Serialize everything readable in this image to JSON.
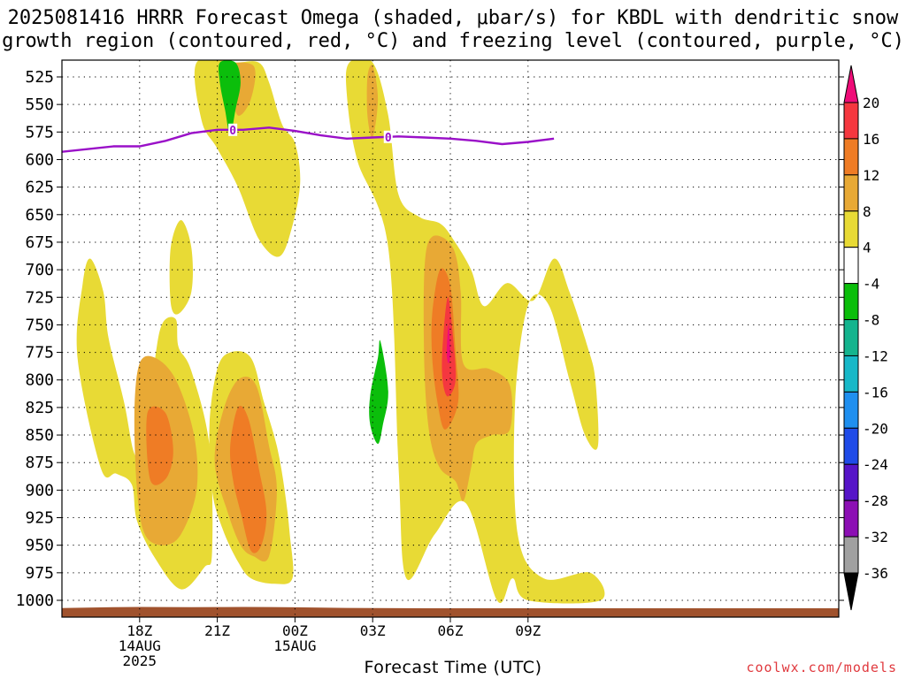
{
  "title": {
    "line1": "2025081416 HRRR Forecast Omega (shaded, μbar/s) for KBDL with dendritic snow",
    "line2": "growth region (contoured, red, °C) and freezing level (contoured, purple, °C)"
  },
  "credit": "coolwx.com/models",
  "chart_data": {
    "type": "heatmap",
    "xlabel": "Forecast Time (UTC)",
    "ylabel": "",
    "y_axis": {
      "scale": "pressure (hPa), inverted",
      "ylim": [
        1000,
        510
      ],
      "ticks": [
        525,
        550,
        575,
        600,
        625,
        650,
        675,
        700,
        725,
        750,
        775,
        800,
        825,
        850,
        875,
        900,
        925,
        950,
        975,
        1000
      ]
    },
    "x_axis": {
      "xlim_hours_from_start": [
        0,
        30
      ],
      "ticks": [
        {
          "hour": 3,
          "label": "18Z",
          "sub1": "14AUG",
          "sub2": "2025"
        },
        {
          "hour": 6,
          "label": "21Z",
          "sub1": "",
          "sub2": ""
        },
        {
          "hour": 9,
          "label": "00Z",
          "sub1": "15AUG",
          "sub2": ""
        },
        {
          "hour": 12,
          "label": "03Z",
          "sub1": "",
          "sub2": ""
        },
        {
          "hour": 15,
          "label": "06Z",
          "sub1": "",
          "sub2": ""
        },
        {
          "hour": 18,
          "label": "09Z",
          "sub1": "",
          "sub2": ""
        }
      ]
    },
    "grid": true,
    "colorbar": {
      "levels": [
        20,
        16,
        12,
        8,
        4,
        -4,
        -8,
        -12,
        -16,
        -20,
        -24,
        -28,
        -32,
        -36
      ],
      "colors": [
        "#ef0c78",
        "#f5373f",
        "#ef7c25",
        "#e8a935",
        "#e8da35",
        "#ffffff",
        "#0bbe0b",
        "#14b48e",
        "#17b8c8",
        "#1f8fef",
        "#1f4be8",
        "#5614c8",
        "#8c0fb4",
        "#a0a0a0",
        "#000000"
      ]
    },
    "freezing_level": {
      "label": "0",
      "color": "#9a10c8",
      "points": [
        [
          0,
          593
        ],
        [
          2,
          588
        ],
        [
          3,
          588
        ],
        [
          4,
          583
        ],
        [
          5,
          576
        ],
        [
          6,
          573
        ],
        [
          7,
          573
        ],
        [
          8,
          571
        ],
        [
          9,
          574
        ],
        [
          10,
          578
        ],
        [
          11,
          581
        ],
        [
          12,
          580
        ],
        [
          13,
          579
        ],
        [
          14,
          580
        ],
        [
          15,
          581
        ],
        [
          16,
          583
        ],
        [
          17,
          586
        ],
        [
          18,
          584
        ],
        [
          19,
          581
        ]
      ]
    },
    "omega_regions": [
      {
        "level": 4,
        "color": "#e8da35",
        "points": [
          [
            5.2,
            512
          ],
          [
            6.7,
            512
          ],
          [
            7.6,
            512
          ],
          [
            8.0,
            530
          ],
          [
            8.5,
            568
          ],
          [
            9.0,
            585
          ],
          [
            9.2,
            620
          ],
          [
            8.9,
            660
          ],
          [
            8.4,
            688
          ],
          [
            7.6,
            672
          ],
          [
            6.8,
            625
          ],
          [
            6.0,
            590
          ],
          [
            5.4,
            565
          ]
        ]
      },
      {
        "level": 4,
        "color": "#e8da35",
        "points": [
          [
            11.1,
            512
          ],
          [
            12.0,
            512
          ],
          [
            12.6,
            560
          ],
          [
            13.0,
            632
          ],
          [
            13.8,
            652
          ],
          [
            14.6,
            658
          ],
          [
            15.1,
            672
          ],
          [
            15.8,
            700
          ],
          [
            16.3,
            733
          ],
          [
            17.2,
            712
          ],
          [
            18.2,
            728
          ],
          [
            19.0,
            690
          ],
          [
            19.6,
            720
          ],
          [
            20.3,
            770
          ],
          [
            20.6,
            800
          ],
          [
            20.7,
            860
          ],
          [
            20.2,
            850
          ],
          [
            19.6,
            800
          ],
          [
            18.8,
            732
          ],
          [
            18.0,
            732
          ],
          [
            17.5,
            820
          ],
          [
            17.6,
            940
          ],
          [
            18.6,
            980
          ],
          [
            20.4,
            975
          ],
          [
            20.8,
            1000
          ],
          [
            18.0,
            1000
          ],
          [
            17.4,
            980
          ],
          [
            16.8,
            1000
          ],
          [
            15.6,
            912
          ],
          [
            14.4,
            940
          ],
          [
            13.3,
            980
          ],
          [
            13.0,
            880
          ],
          [
            12.6,
            680
          ],
          [
            11.4,
            600
          ],
          [
            11.0,
            540
          ]
        ]
      },
      {
        "level": 4,
        "color": "#e8da35",
        "points": [
          [
            0.6,
            780
          ],
          [
            0.8,
            713
          ],
          [
            1.1,
            690
          ],
          [
            1.6,
            720
          ],
          [
            1.8,
            762
          ],
          [
            2.4,
            820
          ],
          [
            2.8,
            867
          ],
          [
            3.2,
            866
          ],
          [
            3.6,
            780
          ],
          [
            3.9,
            748
          ],
          [
            4.4,
            745
          ],
          [
            4.5,
            770
          ],
          [
            5.0,
            792
          ],
          [
            5.7,
            860
          ],
          [
            5.8,
            956
          ],
          [
            5.5,
            970
          ],
          [
            4.6,
            990
          ],
          [
            3.6,
            962
          ],
          [
            2.9,
            928
          ],
          [
            2.7,
            895
          ],
          [
            2.1,
            885
          ],
          [
            1.5,
            880
          ]
        ]
      },
      {
        "level": 4,
        "color": "#e8da35",
        "points": [
          [
            4.2,
            680
          ],
          [
            4.6,
            655
          ],
          [
            5.0,
            680
          ],
          [
            5.0,
            720
          ],
          [
            4.5,
            740
          ],
          [
            4.2,
            730
          ]
        ]
      },
      {
        "level": 4,
        "color": "#e8da35",
        "points": [
          [
            5.7,
            840
          ],
          [
            6.0,
            790
          ],
          [
            6.5,
            775
          ],
          [
            7.3,
            780
          ],
          [
            7.8,
            820
          ],
          [
            8.3,
            860
          ],
          [
            8.6,
            900
          ],
          [
            8.8,
            940
          ],
          [
            8.9,
            980
          ],
          [
            8.2,
            985
          ],
          [
            7.3,
            980
          ],
          [
            6.8,
            965
          ],
          [
            6.2,
            935
          ],
          [
            5.8,
            900
          ]
        ]
      },
      {
        "level": 8,
        "color": "#e8a935",
        "points": [
          [
            6.3,
            515
          ],
          [
            7.4,
            515
          ],
          [
            7.3,
            545
          ],
          [
            6.8,
            560
          ],
          [
            6.5,
            535
          ]
        ]
      },
      {
        "level": 8,
        "color": "#e8a935",
        "points": [
          [
            11.8,
            525
          ],
          [
            12.0,
            515
          ],
          [
            12.2,
            545
          ],
          [
            12.0,
            580
          ],
          [
            11.8,
            560
          ]
        ]
      },
      {
        "level": 8,
        "color": "#e8a935",
        "points": [
          [
            2.8,
            830
          ],
          [
            3.0,
            785
          ],
          [
            3.6,
            780
          ],
          [
            4.4,
            800
          ],
          [
            5.1,
            850
          ],
          [
            5.2,
            900
          ],
          [
            4.6,
            940
          ],
          [
            3.9,
            950
          ],
          [
            3.2,
            940
          ],
          [
            2.9,
            900
          ]
        ]
      },
      {
        "level": 8,
        "color": "#e8a935",
        "points": [
          [
            5.9,
            875
          ],
          [
            6.2,
            830
          ],
          [
            6.8,
            800
          ],
          [
            7.5,
            805
          ],
          [
            8.0,
            860
          ],
          [
            8.3,
            900
          ],
          [
            8.0,
            960
          ],
          [
            7.4,
            960
          ],
          [
            6.9,
            950
          ],
          [
            6.4,
            920
          ]
        ]
      },
      {
        "level": 8,
        "color": "#e8a935",
        "points": [
          [
            14.0,
            700
          ],
          [
            14.3,
            670
          ],
          [
            15.1,
            680
          ],
          [
            15.4,
            720
          ],
          [
            15.5,
            785
          ],
          [
            16.5,
            790
          ],
          [
            17.3,
            805
          ],
          [
            17.3,
            845
          ],
          [
            16.6,
            850
          ],
          [
            16.0,
            858
          ],
          [
            15.8,
            880
          ],
          [
            15.5,
            910
          ],
          [
            15.2,
            892
          ],
          [
            14.6,
            880
          ],
          [
            14.2,
            850
          ],
          [
            14.0,
            790
          ]
        ]
      },
      {
        "level": 12,
        "color": "#ef7c25",
        "points": [
          [
            3.3,
            830
          ],
          [
            4.0,
            830
          ],
          [
            4.3,
            865
          ],
          [
            4.0,
            890
          ],
          [
            3.4,
            890
          ]
        ]
      },
      {
        "level": 12,
        "color": "#ef7c25",
        "points": [
          [
            6.5,
            860
          ],
          [
            6.8,
            825
          ],
          [
            7.2,
            835
          ],
          [
            7.6,
            880
          ],
          [
            7.9,
            920
          ],
          [
            7.7,
            950
          ],
          [
            7.3,
            955
          ],
          [
            6.9,
            920
          ],
          [
            6.6,
            890
          ]
        ]
      },
      {
        "level": 12,
        "color": "#ef7c25",
        "points": [
          [
            14.3,
            740
          ],
          [
            14.6,
            700
          ],
          [
            15.0,
            715
          ],
          [
            15.2,
            775
          ],
          [
            15.3,
            820
          ],
          [
            14.8,
            845
          ],
          [
            14.5,
            820
          ],
          [
            14.3,
            780
          ]
        ]
      },
      {
        "level": 16,
        "color": "#f5373f",
        "points": [
          [
            14.7,
            770
          ],
          [
            14.9,
            725
          ],
          [
            15.1,
            760
          ],
          [
            15.2,
            800
          ],
          [
            14.9,
            815
          ],
          [
            14.7,
            800
          ]
        ]
      },
      {
        "level": 20,
        "color": "#ef0c78",
        "points": [
          [
            14.86,
            775
          ],
          [
            14.93,
            750
          ],
          [
            15.0,
            775
          ],
          [
            14.93,
            785
          ]
        ]
      },
      {
        "level": -4,
        "color": "#0bbe0b",
        "points": [
          [
            6.1,
            512
          ],
          [
            6.7,
            512
          ],
          [
            6.9,
            530
          ],
          [
            6.7,
            555
          ],
          [
            6.5,
            578
          ],
          [
            6.3,
            555
          ],
          [
            6.1,
            530
          ]
        ]
      },
      {
        "level": -4,
        "color": "#0bbe0b",
        "points": [
          [
            11.9,
            815
          ],
          [
            12.2,
            780
          ],
          [
            12.3,
            765
          ],
          [
            12.6,
            810
          ],
          [
            12.4,
            840
          ],
          [
            12.2,
            858
          ],
          [
            11.9,
            840
          ]
        ]
      }
    ],
    "ground_strip": {
      "color": "#a0522d"
    }
  }
}
